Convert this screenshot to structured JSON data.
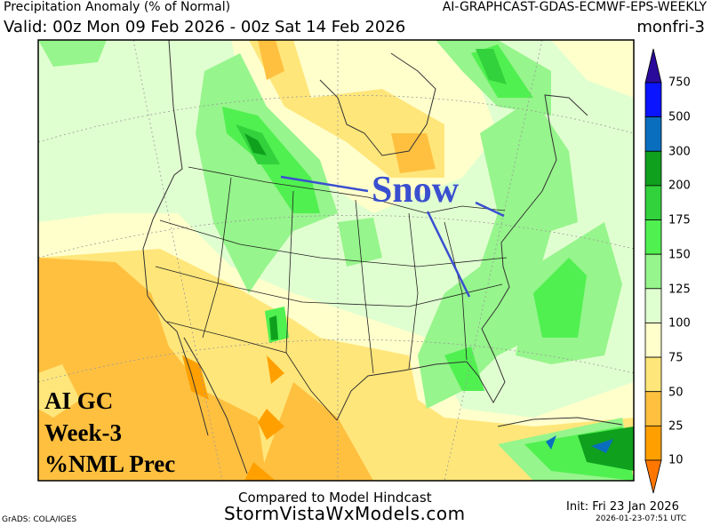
{
  "header": {
    "title": "Precipitation Anomaly (% of Normal)",
    "model": "AI-GRAPHCAST-GDAS-ECMWF-EPS-WEEKLY",
    "valid": "Valid: 00z Mon 09 Feb 2026 - 00z Sat 14 Feb 2026",
    "run_label": "monfri-3"
  },
  "map": {
    "region": "North America",
    "annotations": {
      "snow": "Snow",
      "line1": "AI GC",
      "line2": "Week-3",
      "line3": "%NML Prec"
    },
    "annotation_color": "#3a4fd0"
  },
  "colorbar": {
    "labels": [
      "750",
      "500",
      "300",
      "200",
      "175",
      "150",
      "125",
      "100",
      "75",
      "50",
      "25",
      "10"
    ],
    "colors": {
      "above_750": "#2a0a9a",
      "500_750": "#0a14ff",
      "300_500": "#0a6ebe",
      "200_300": "#0fa01e",
      "175_200": "#32d23c",
      "150_175": "#50f050",
      "125_150": "#96f58c",
      "100_125": "#e0ffd0",
      "75_100": "#ffffcc",
      "50_75": "#ffe67a",
      "25_50": "#ffc040",
      "10_25": "#ffa000",
      "below_10": "#ff7700"
    }
  },
  "footer": {
    "compared": "Compared to Model Hindcast",
    "site": "StormVistaWxModels.com",
    "grads": "GrADS: COLA/IGES",
    "init": "Init: Fri 23 Jan 2026",
    "timestamp": "2026-01-23-07:51 UTC"
  }
}
